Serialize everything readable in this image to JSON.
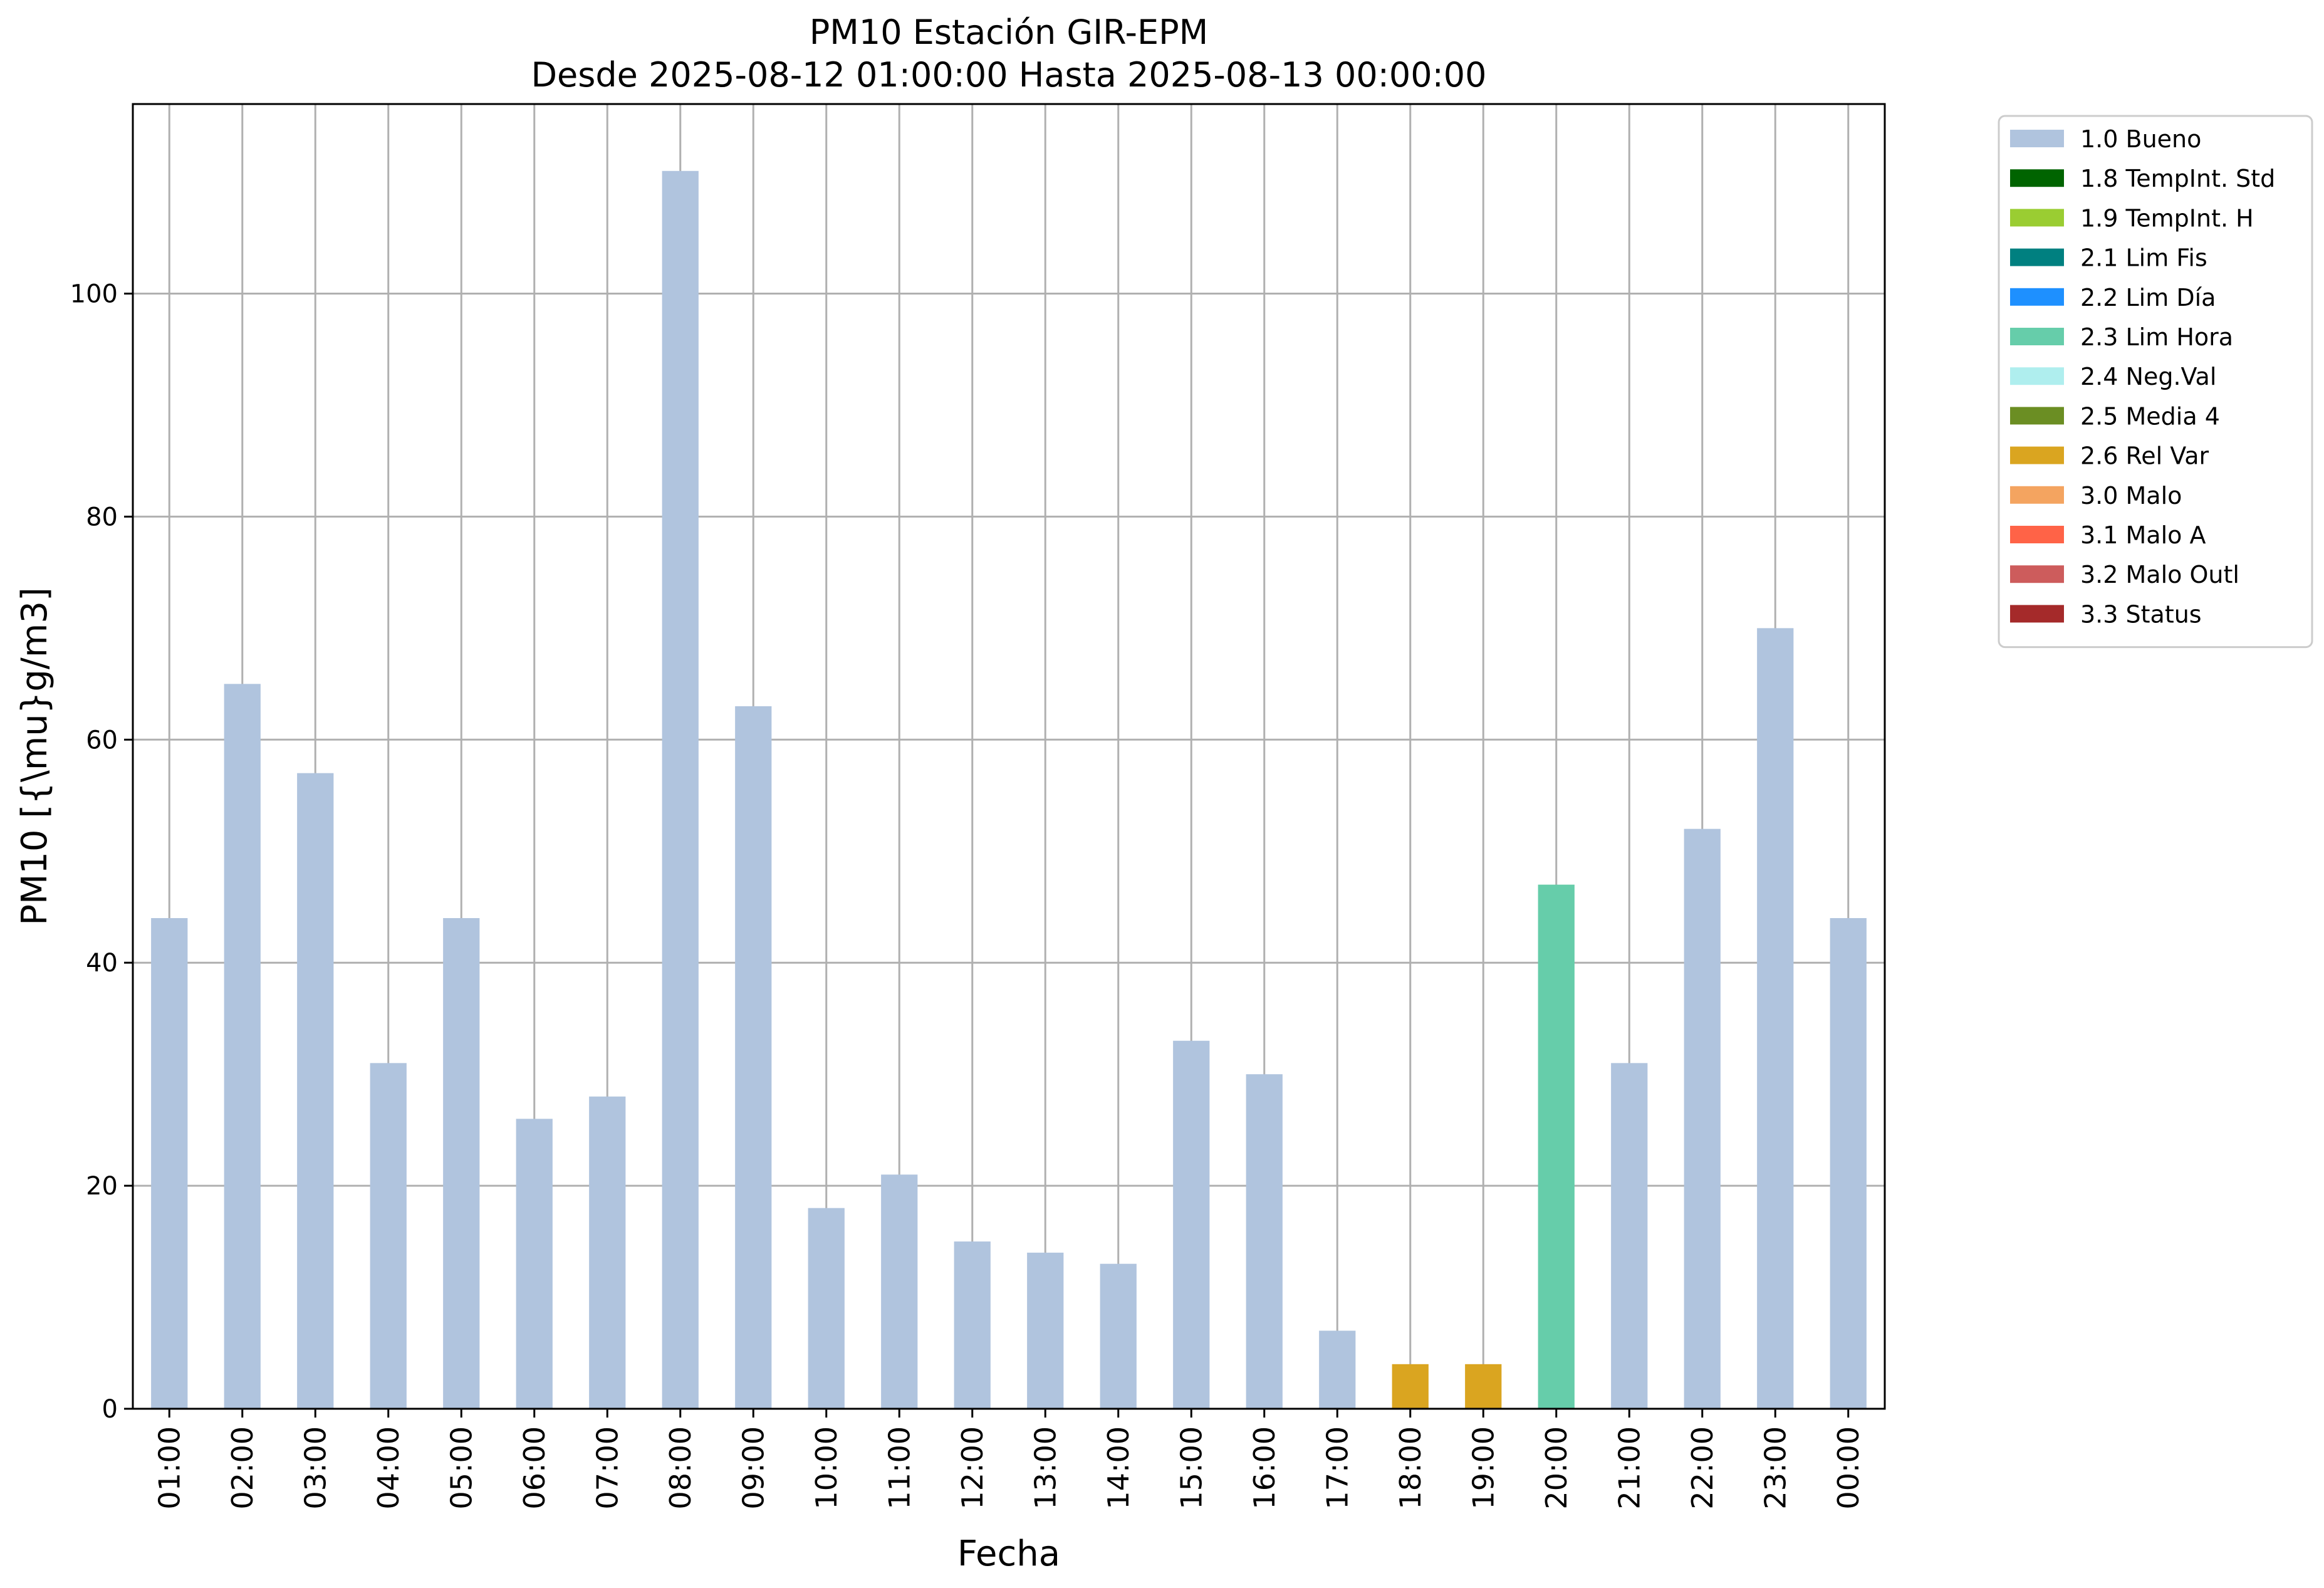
{
  "chart_data": {
    "type": "bar",
    "title": "PM10 Estación GIR-EPM",
    "subtitle": "Desde 2025-08-12 01:00:00 Hasta 2025-08-13 00:00:00",
    "xlabel": "Fecha",
    "ylabel": "PM10 [{\\mu}g/m3]",
    "ylim": [
      0,
      117
    ],
    "yticks": [
      0,
      20,
      40,
      60,
      80,
      100
    ],
    "grid": true,
    "legend_position": "outside-top-right",
    "categories": [
      "01:00",
      "02:00",
      "03:00",
      "04:00",
      "05:00",
      "06:00",
      "07:00",
      "08:00",
      "09:00",
      "10:00",
      "11:00",
      "12:00",
      "13:00",
      "14:00",
      "15:00",
      "16:00",
      "17:00",
      "18:00",
      "19:00",
      "20:00",
      "21:00",
      "22:00",
      "23:00",
      "00:00"
    ],
    "values": [
      44,
      65,
      57,
      31,
      44,
      26,
      28,
      111,
      63,
      18,
      21,
      15,
      14,
      13,
      33,
      30,
      7,
      4,
      4,
      47,
      31,
      52,
      70,
      44
    ],
    "flags": [
      "1.0 Bueno",
      "1.0 Bueno",
      "1.0 Bueno",
      "1.0 Bueno",
      "1.0 Bueno",
      "1.0 Bueno",
      "1.0 Bueno",
      "1.0 Bueno",
      "1.0 Bueno",
      "1.0 Bueno",
      "1.0 Bueno",
      "1.0 Bueno",
      "1.0 Bueno",
      "1.0 Bueno",
      "1.0 Bueno",
      "1.0 Bueno",
      "1.0 Bueno",
      "2.6 Rel Var",
      "2.6 Rel Var",
      "2.3 Lim Hora",
      "1.0 Bueno",
      "1.0 Bueno",
      "1.0 Bueno",
      "1.0 Bueno"
    ],
    "legend": [
      {
        "label": "1.0 Bueno",
        "color": "#b0c4de"
      },
      {
        "label": "1.8 TempInt. Std",
        "color": "#006400"
      },
      {
        "label": "1.9 TempInt. H",
        "color": "#9acd32"
      },
      {
        "label": "2.1 Lim Fis",
        "color": "#008080"
      },
      {
        "label": "2.2 Lim Día",
        "color": "#1e90ff"
      },
      {
        "label": "2.3 Lim Hora",
        "color": "#66cdaa"
      },
      {
        "label": "2.4 Neg.Val",
        "color": "#afeeee"
      },
      {
        "label": "2.5 Media 4",
        "color": "#6b8e23"
      },
      {
        "label": "2.6 Rel Var",
        "color": "#daa520"
      },
      {
        "label": "3.0 Malo",
        "color": "#f4a460"
      },
      {
        "label": "3.1 Malo A",
        "color": "#ff6347"
      },
      {
        "label": "3.2 Malo Outl",
        "color": "#cd5c5c"
      },
      {
        "label": "3.3 Status",
        "color": "#a52a2a"
      }
    ]
  }
}
